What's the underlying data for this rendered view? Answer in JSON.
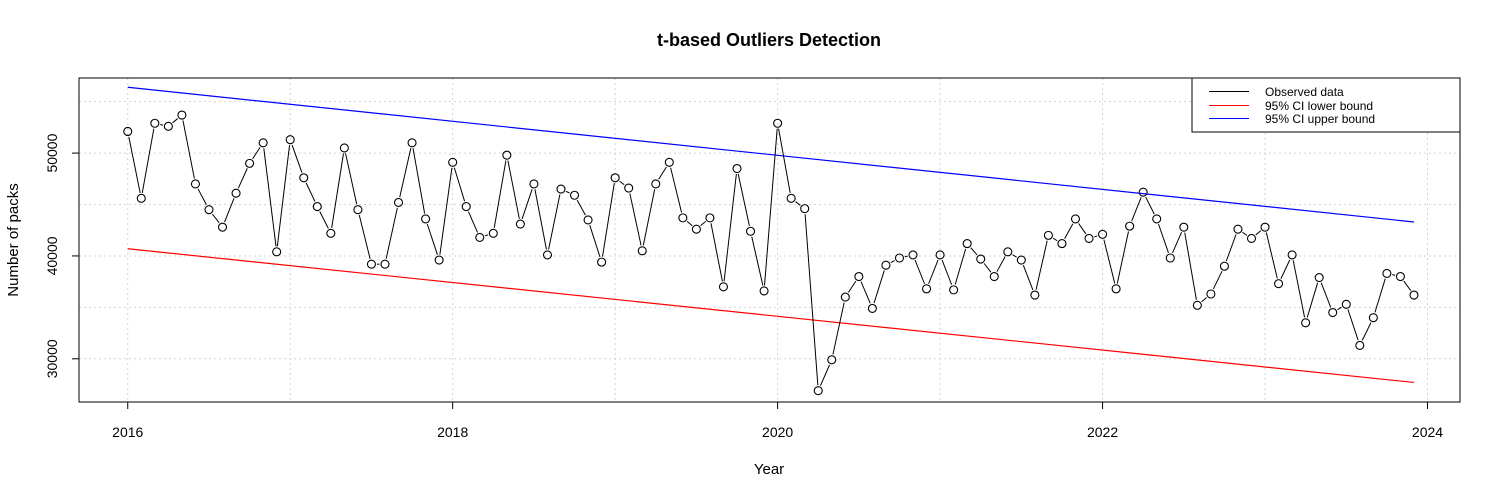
{
  "chart_data": {
    "type": "line",
    "title": "t-based Outliers Detection",
    "xlabel": "Year",
    "ylabel": "Number of packs",
    "xlim": [
      2015.7,
      2024.2
    ],
    "ylim": [
      25800,
      57300
    ],
    "x_ticks": [
      2016,
      2018,
      2020,
      2022,
      2024
    ],
    "x_tick_labels": [
      "2016",
      "2018",
      "2020",
      "2022",
      "2024"
    ],
    "y_ticks": [
      30000,
      40000,
      50000
    ],
    "y_tick_labels": [
      "30000",
      "40000",
      "50000"
    ],
    "grid": true,
    "legend_position": "top-right",
    "colors": {
      "observed": "#000000",
      "lower": "#ff0000",
      "upper": "#0000ff",
      "grid": "#d3d3d3"
    },
    "series": [
      {
        "name": "Observed data",
        "style": "line-with-points",
        "start_year": 2016,
        "frequency": "monthly",
        "values": [
          52100,
          45600,
          52900,
          52600,
          53700,
          47000,
          44500,
          42800,
          46100,
          49000,
          51000,
          40400,
          51300,
          47600,
          44800,
          42200,
          50500,
          44500,
          39200,
          39200,
          45200,
          51000,
          43600,
          39600,
          49100,
          44800,
          41800,
          42200,
          49800,
          43100,
          47000,
          40100,
          46500,
          45900,
          43500,
          39400,
          47600,
          46600,
          40500,
          47000,
          49100,
          43700,
          42600,
          43700,
          37000,
          48500,
          42400,
          36600,
          52900,
          45600,
          44600,
          26900,
          29900,
          36000,
          38000,
          34900,
          39100,
          39800,
          40100,
          36800,
          40100,
          36700,
          41200,
          39700,
          38000,
          40400,
          39600,
          36200,
          42000,
          41200,
          43600,
          41700,
          42100,
          36800,
          42900,
          46200,
          43600,
          39800,
          42800,
          35200,
          36300,
          39000,
          42600,
          41700,
          42800,
          37300,
          40100,
          33500,
          37900,
          34500,
          35300,
          31300,
          34000,
          38300,
          38000,
          36200
        ]
      },
      {
        "name": "95% CI lower bound",
        "style": "line",
        "x": [
          2016.0,
          2023.917
        ],
        "values": [
          40700,
          27700
        ]
      },
      {
        "name": "95% CI upper bound",
        "style": "line",
        "x": [
          2016.0,
          2023.917
        ],
        "values": [
          56400,
          43300
        ]
      }
    ]
  }
}
